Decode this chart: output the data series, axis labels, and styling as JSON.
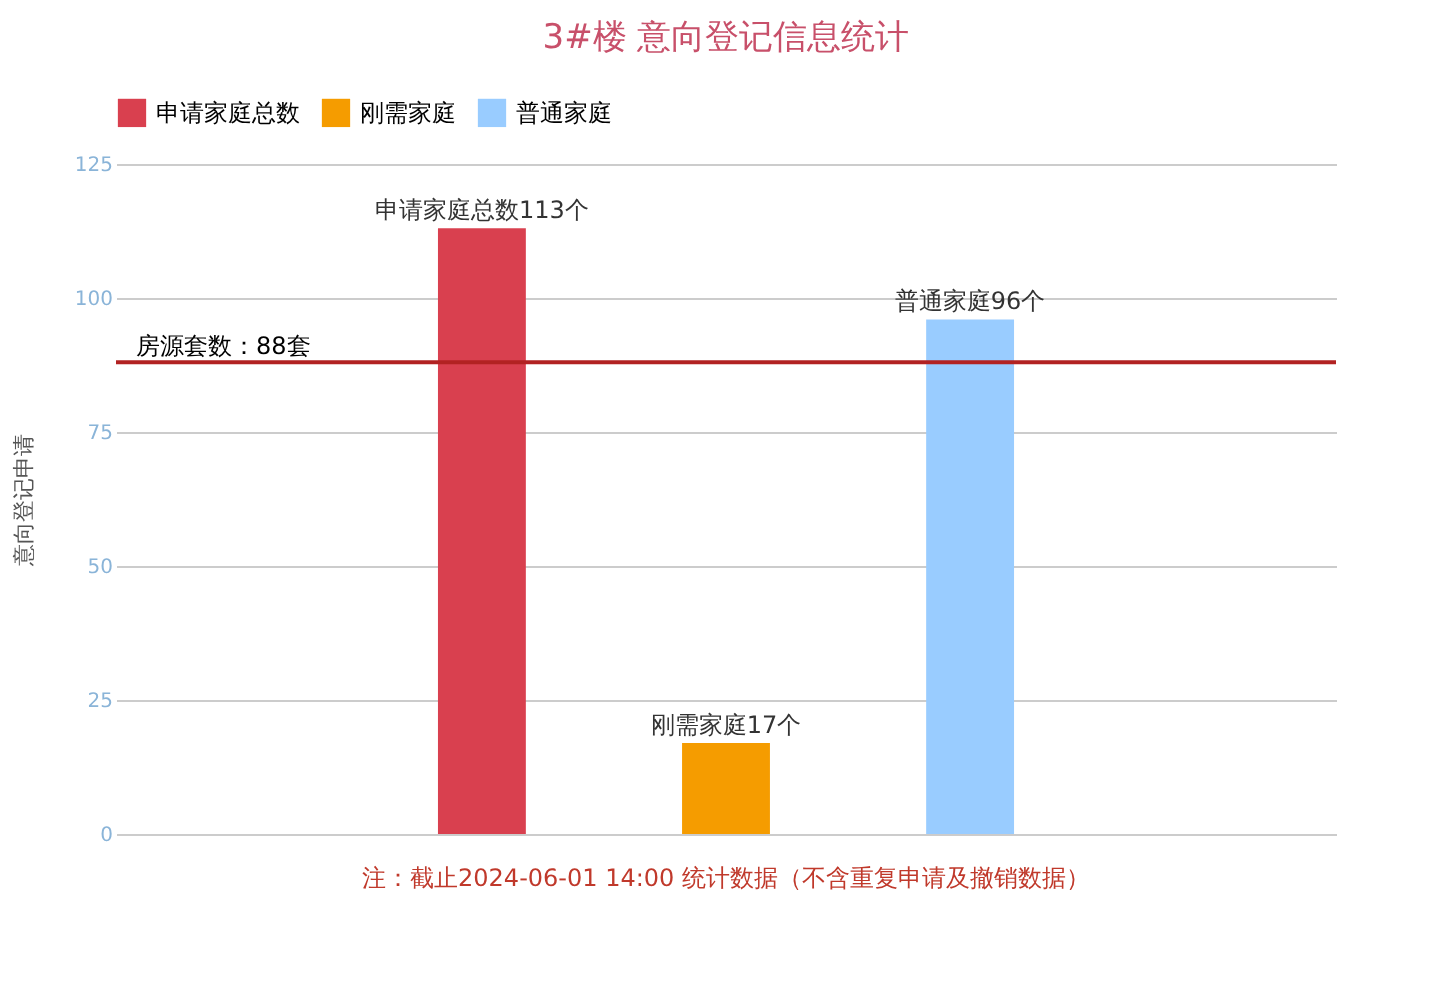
{
  "chart_data": {
    "type": "bar",
    "title": "3#楼 意向登记信息统计",
    "ylabel": "意向登记申请",
    "categories": [
      null
    ],
    "series": [
      {
        "name": "申请家庭总数",
        "color": "#d9404f",
        "values": [
          113
        ],
        "value_labels": [
          "申请家庭总数113个"
        ]
      },
      {
        "name": "刚需家庭",
        "color": "#f59c00",
        "values": [
          17
        ],
        "value_labels": [
          "刚需家庭17个"
        ]
      },
      {
        "name": "普通家庭",
        "color": "#99ccff",
        "values": [
          96
        ],
        "value_labels": [
          "普通家庭96个"
        ]
      }
    ],
    "ylim": [
      0,
      125
    ],
    "yticks": [
      0,
      25,
      50,
      75,
      100,
      125
    ],
    "grid": "y",
    "legend": "top",
    "tick_labels": "y",
    "ref_lines": [
      {
        "axis": "y",
        "value": 88,
        "label": "房源套数：88套",
        "color": "#b22222"
      }
    ],
    "annotations": [
      "注：截止2024-06-01 14:00 统计数据（不含重复申请及撤销数据）"
    ]
  }
}
